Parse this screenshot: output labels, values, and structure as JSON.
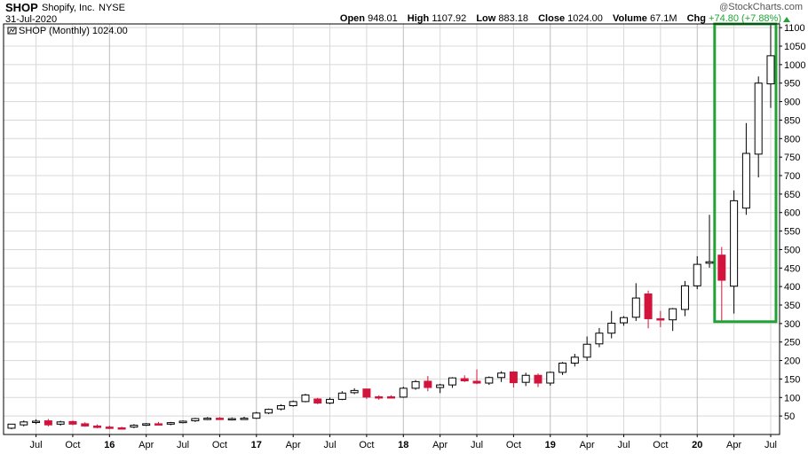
{
  "header": {
    "ticker": "SHOP",
    "company": "Shopify, Inc.",
    "exchange": "NYSE",
    "date": "31-Jul-2020",
    "copyright": "StockCharts.com",
    "copyright_mark": "@",
    "open_label": "Open",
    "open_value": "948.01",
    "high_label": "High",
    "high_value": "1107.92",
    "low_label": "Low",
    "low_value": "883.18",
    "close_label": "Close",
    "close_value": "1024.00",
    "volume_label": "Volume",
    "volume_value": "67.1M",
    "chg_label": "Chg",
    "chg_value": "+74.80 (+7.88%)",
    "chg_color": "#21a236"
  },
  "legend": {
    "label": "SHOP (Monthly) 1024.00"
  },
  "colors": {
    "up_fill": "#ffffff",
    "down_fill": "#d2143c",
    "outline": "#000000",
    "grid": "#d8d8d8",
    "highlight": "#21a236"
  },
  "chart_data": {
    "type": "candlestick",
    "title": "SHOP (Monthly) 1024.00",
    "interval": "monthly",
    "x_start": "2015-05",
    "x_end": "2020-07",
    "y_axis_position": "right",
    "ylim": [
      0,
      1110
    ],
    "y_ticks": [
      50,
      100,
      150,
      200,
      250,
      300,
      350,
      400,
      450,
      500,
      550,
      600,
      650,
      700,
      750,
      800,
      850,
      900,
      950,
      1000,
      1050,
      1100
    ],
    "x_ticks": [
      {
        "label": "Jul",
        "index": 2,
        "bold": false
      },
      {
        "label": "Oct",
        "index": 5,
        "bold": false
      },
      {
        "label": "16",
        "index": 8,
        "bold": true
      },
      {
        "label": "Apr",
        "index": 11,
        "bold": false
      },
      {
        "label": "Jul",
        "index": 14,
        "bold": false
      },
      {
        "label": "Oct",
        "index": 17,
        "bold": false
      },
      {
        "label": "17",
        "index": 20,
        "bold": true
      },
      {
        "label": "Apr",
        "index": 23,
        "bold": false
      },
      {
        "label": "Jul",
        "index": 26,
        "bold": false
      },
      {
        "label": "Oct",
        "index": 29,
        "bold": false
      },
      {
        "label": "18",
        "index": 32,
        "bold": true
      },
      {
        "label": "Apr",
        "index": 35,
        "bold": false
      },
      {
        "label": "Jul",
        "index": 38,
        "bold": false
      },
      {
        "label": "Oct",
        "index": 41,
        "bold": false
      },
      {
        "label": "19",
        "index": 44,
        "bold": true
      },
      {
        "label": "Apr",
        "index": 47,
        "bold": false
      },
      {
        "label": "Jul",
        "index": 50,
        "bold": false
      },
      {
        "label": "Oct",
        "index": 53,
        "bold": false
      },
      {
        "label": "20",
        "index": 56,
        "bold": true
      },
      {
        "label": "Apr",
        "index": 59,
        "bold": false
      },
      {
        "label": "Jul",
        "index": 62,
        "bold": false
      }
    ],
    "grid": true,
    "highlight_box": {
      "from_index": 58,
      "to_index": 62,
      "y_from": 305,
      "y_to": 1110,
      "color": "#21a236"
    },
    "candles": [
      {
        "o": 17,
        "h": 26,
        "l": 14,
        "c": 28
      },
      {
        "o": 26,
        "h": 38,
        "l": 22,
        "c": 34
      },
      {
        "o": 33,
        "h": 41,
        "l": 28,
        "c": 36
      },
      {
        "o": 37,
        "h": 42,
        "l": 22,
        "c": 26
      },
      {
        "o": 28,
        "h": 37,
        "l": 24,
        "c": 34
      },
      {
        "o": 35,
        "h": 38,
        "l": 25,
        "c": 28
      },
      {
        "o": 29,
        "h": 33,
        "l": 21,
        "c": 23
      },
      {
        "o": 23,
        "h": 27,
        "l": 17,
        "c": 19
      },
      {
        "o": 20,
        "h": 24,
        "l": 15,
        "c": 18
      },
      {
        "o": 18,
        "h": 21,
        "l": 14,
        "c": 17
      },
      {
        "o": 20,
        "h": 28,
        "l": 17,
        "c": 25
      },
      {
        "o": 25,
        "h": 31,
        "l": 23,
        "c": 29
      },
      {
        "o": 29,
        "h": 34,
        "l": 25,
        "c": 28
      },
      {
        "o": 28,
        "h": 34,
        "l": 25,
        "c": 32
      },
      {
        "o": 32,
        "h": 38,
        "l": 30,
        "c": 36
      },
      {
        "o": 37,
        "h": 45,
        "l": 34,
        "c": 43
      },
      {
        "o": 43,
        "h": 47,
        "l": 39,
        "c": 44
      },
      {
        "o": 44,
        "h": 47,
        "l": 40,
        "c": 42
      },
      {
        "o": 42,
        "h": 46,
        "l": 38,
        "c": 43
      },
      {
        "o": 43,
        "h": 48,
        "l": 40,
        "c": 44
      },
      {
        "o": 44,
        "h": 61,
        "l": 42,
        "c": 58
      },
      {
        "o": 58,
        "h": 70,
        "l": 55,
        "c": 68
      },
      {
        "o": 69,
        "h": 82,
        "l": 65,
        "c": 78
      },
      {
        "o": 78,
        "h": 92,
        "l": 75,
        "c": 89
      },
      {
        "o": 89,
        "h": 110,
        "l": 87,
        "c": 107
      },
      {
        "o": 96,
        "h": 99,
        "l": 82,
        "c": 85
      },
      {
        "o": 85,
        "h": 100,
        "l": 82,
        "c": 95
      },
      {
        "o": 95,
        "h": 117,
        "l": 93,
        "c": 112
      },
      {
        "o": 113,
        "h": 125,
        "l": 109,
        "c": 119
      },
      {
        "o": 123,
        "h": 124,
        "l": 96,
        "c": 101
      },
      {
        "o": 102,
        "h": 106,
        "l": 94,
        "c": 100
      },
      {
        "o": 102,
        "h": 106,
        "l": 98,
        "c": 101
      },
      {
        "o": 101,
        "h": 129,
        "l": 99,
        "c": 125
      },
      {
        "o": 125,
        "h": 147,
        "l": 121,
        "c": 143
      },
      {
        "o": 144,
        "h": 158,
        "l": 117,
        "c": 127
      },
      {
        "o": 127,
        "h": 137,
        "l": 112,
        "c": 134
      },
      {
        "o": 134,
        "h": 155,
        "l": 126,
        "c": 153
      },
      {
        "o": 151,
        "h": 160,
        "l": 142,
        "c": 145
      },
      {
        "o": 144,
        "h": 176,
        "l": 136,
        "c": 139
      },
      {
        "o": 139,
        "h": 157,
        "l": 134,
        "c": 154
      },
      {
        "o": 154,
        "h": 171,
        "l": 142,
        "c": 166
      },
      {
        "o": 169,
        "h": 171,
        "l": 127,
        "c": 140
      },
      {
        "o": 141,
        "h": 167,
        "l": 131,
        "c": 160
      },
      {
        "o": 160,
        "h": 165,
        "l": 128,
        "c": 139
      },
      {
        "o": 139,
        "h": 170,
        "l": 132,
        "c": 168
      },
      {
        "o": 168,
        "h": 196,
        "l": 161,
        "c": 193
      },
      {
        "o": 193,
        "h": 218,
        "l": 184,
        "c": 209
      },
      {
        "o": 209,
        "h": 265,
        "l": 199,
        "c": 244
      },
      {
        "o": 245,
        "h": 288,
        "l": 236,
        "c": 274
      },
      {
        "o": 274,
        "h": 334,
        "l": 260,
        "c": 301
      },
      {
        "o": 302,
        "h": 320,
        "l": 294,
        "c": 316
      },
      {
        "o": 317,
        "h": 409,
        "l": 307,
        "c": 369
      },
      {
        "o": 380,
        "h": 389,
        "l": 287,
        "c": 313
      },
      {
        "o": 313,
        "h": 334,
        "l": 290,
        "c": 312
      },
      {
        "o": 310,
        "h": 342,
        "l": 280,
        "c": 340
      },
      {
        "o": 338,
        "h": 415,
        "l": 320,
        "c": 402
      },
      {
        "o": 402,
        "h": 482,
        "l": 393,
        "c": 460
      },
      {
        "o": 463,
        "h": 594,
        "l": 451,
        "c": 467
      },
      {
        "o": 485,
        "h": 507,
        "l": 305,
        "c": 417
      },
      {
        "o": 401,
        "h": 660,
        "l": 327,
        "c": 632
      },
      {
        "o": 612,
        "h": 842,
        "l": 594,
        "c": 760
      },
      {
        "o": 758,
        "h": 968,
        "l": 695,
        "c": 950
      },
      {
        "o": 948,
        "h": 1108,
        "l": 883,
        "c": 1024
      }
    ]
  }
}
